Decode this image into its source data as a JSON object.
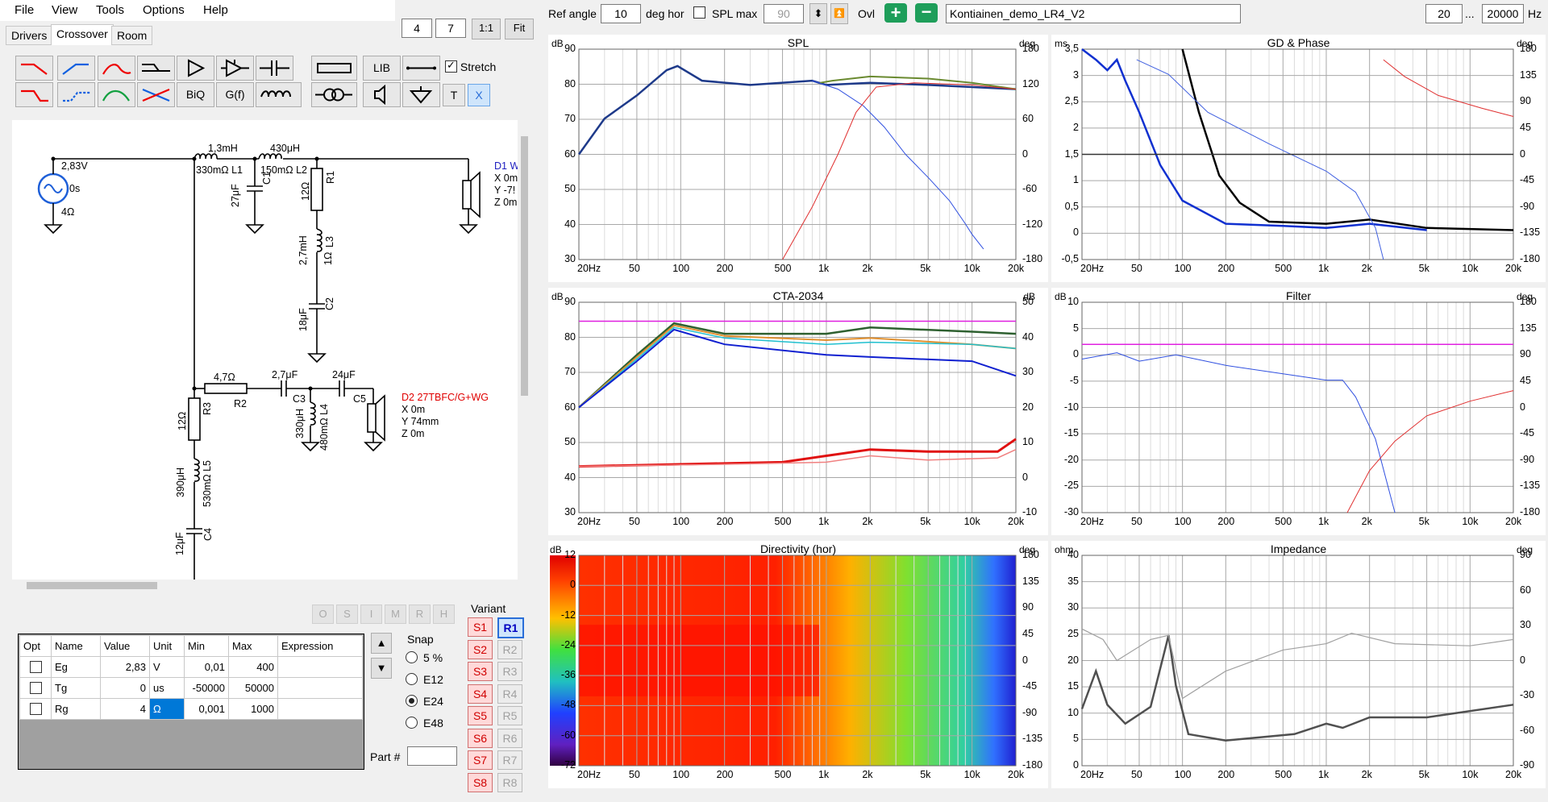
{
  "menu": [
    "File",
    "View",
    "Tools",
    "Options",
    "Help"
  ],
  "tabs": [
    "Drivers",
    "Crossover",
    "Room"
  ],
  "zoom": {
    "a": "4",
    "b": "7",
    "one_to_one": "1:1",
    "fit": "Fit"
  },
  "toolbar": {
    "lib": "LIB",
    "stretch": "Stretch",
    "biq": "BiQ",
    "gf": "G(f)",
    "t": "T",
    "x": "X"
  },
  "schematic": {
    "labels": [
      "2,83V",
      "0s",
      "4Ω",
      "1,3mH",
      "330mΩ L1",
      "430μH",
      "150mΩ L2",
      "27μF",
      "C1",
      "R1",
      "12Ω",
      "2,7mH",
      "1Ω",
      "L3",
      "C2",
      "18μF",
      "D1 W",
      "X 0m",
      "Y -7!",
      "Z 0m",
      "4,7Ω",
      "R2",
      "2,7μF",
      "C3",
      "24μF",
      "C5",
      "12Ω",
      "R3",
      "330μH",
      "480mΩ L4",
      "D2 27TBFC/G+WG",
      "X 0m",
      "Y 74mm",
      "Z 0m",
      "390μH",
      "530mΩ L5",
      "12μF",
      "C4"
    ]
  },
  "grey_buttons": [
    "O",
    "S",
    "I",
    "M",
    "R",
    "H"
  ],
  "params": {
    "headers": [
      "Opt",
      "Name",
      "Value",
      "Unit",
      "Min",
      "Max",
      "Expression"
    ],
    "rows": [
      {
        "name": "Eg",
        "value": "2,83",
        "unit": "V",
        "min": "0,01",
        "max": "400"
      },
      {
        "name": "Tg",
        "value": "0",
        "unit": "us",
        "min": "-50000",
        "max": "50000"
      },
      {
        "name": "Rg",
        "value": "4",
        "unit": "Ω",
        "min": "0,001",
        "max": "1000"
      }
    ]
  },
  "snap": {
    "title": "Snap",
    "options": [
      "5 %",
      "E12",
      "E24",
      "E48"
    ],
    "selected": "E24"
  },
  "part_label": "Part #",
  "variant": {
    "title": "Variant",
    "s": [
      "S1",
      "S2",
      "S3",
      "S4",
      "S5",
      "S6",
      "S7",
      "S8"
    ],
    "r": [
      "R1",
      "R2",
      "R3",
      "R4",
      "R5",
      "R6",
      "R7",
      "R8"
    ],
    "active": "R1"
  },
  "topbar": {
    "ref_angle_label": "Ref angle",
    "ref_angle": "10",
    "deg_hor": "deg hor",
    "spl_max_label": "SPL max",
    "spl_max": "90",
    "ovl": "Ovl",
    "project": "Kontiainen_demo_LR4_V2",
    "f_low": "20",
    "dots": "...",
    "f_high": "20000",
    "hz": "Hz"
  },
  "freq_ticks": [
    "20Hz",
    "50",
    "100",
    "200",
    "500",
    "1k",
    "2k",
    "5k",
    "10k",
    "20k"
  ],
  "panels": {
    "spl": {
      "title": "SPL",
      "lunit": "dB",
      "runit": "deg",
      "left": [
        "90",
        "80",
        "70",
        "60",
        "50",
        "40",
        "30"
      ],
      "right": [
        "180",
        "120",
        "60",
        "0",
        "-60",
        "-120",
        "-180"
      ]
    },
    "gd": {
      "title": "GD & Phase",
      "lunit": "ms",
      "runit": "deg",
      "left": [
        "3,5",
        "3",
        "2,5",
        "2",
        "1,5",
        "1",
        "0,5",
        "0",
        "-0,5"
      ],
      "right": [
        "180",
        "135",
        "90",
        "45",
        "0",
        "-45",
        "-90",
        "-135",
        "-180"
      ]
    },
    "cta": {
      "title": "CTA-2034",
      "lunit": "dB",
      "runit": "dB",
      "left": [
        "90",
        "80",
        "70",
        "60",
        "50",
        "40",
        "30"
      ],
      "right": [
        "50",
        "40",
        "30",
        "20",
        "10",
        "0",
        "-10"
      ]
    },
    "filter": {
      "title": "Filter",
      "lunit": "dB",
      "runit": "deg",
      "left": [
        "10",
        "5",
        "0",
        "-5",
        "-10",
        "-15",
        "-20",
        "-25",
        "-30"
      ],
      "right": [
        "180",
        "135",
        "90",
        "45",
        "0",
        "-45",
        "-90",
        "-135",
        "-180"
      ]
    },
    "dir": {
      "title": "Directivity (hor)",
      "lunit": "dB",
      "runit": "deg",
      "left": [
        "12",
        "0",
        "-12",
        "-24",
        "-36",
        "-48",
        "-60",
        "-72"
      ],
      "right": [
        "180",
        "135",
        "90",
        "45",
        "0",
        "-45",
        "-90",
        "-135",
        "-180"
      ]
    },
    "imp": {
      "title": "Impedance",
      "lunit": "ohm",
      "runit": "deg",
      "left": [
        "40",
        "35",
        "30",
        "25",
        "20",
        "15",
        "10",
        "5",
        "0"
      ],
      "right": [
        "90",
        "60",
        "30",
        "0",
        "-30",
        "-60",
        "-90"
      ]
    }
  },
  "colors": {
    "accent": "#1e9e5a",
    "variant_active": "#2a6ed8"
  }
}
